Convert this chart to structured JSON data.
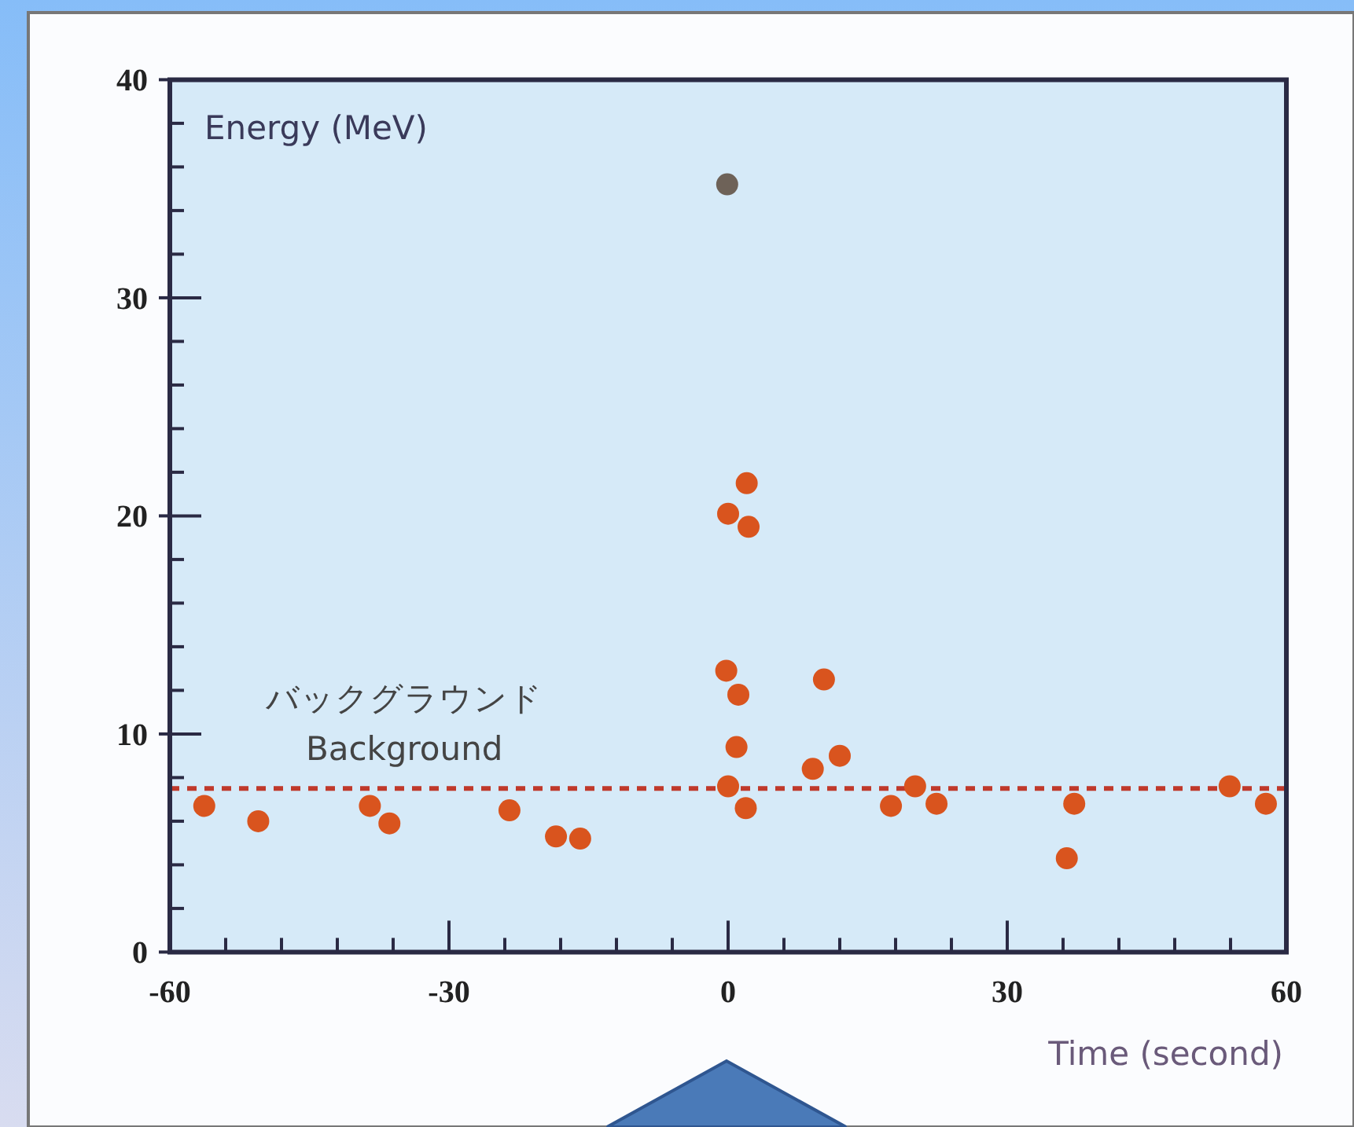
{
  "chart_data": {
    "type": "scatter",
    "xlabel": "Time (second)",
    "ylabel": "Energy (MeV)",
    "xlim": [
      -60,
      60
    ],
    "ylim": [
      0,
      40
    ],
    "xticks": [
      -60,
      {
        "value": -54,
        "label": null
      },
      {
        "value": -48,
        "label": null
      },
      {
        "value": -42,
        "label": null
      },
      {
        "value": -36,
        "label": null
      },
      -30,
      {
        "value": -24,
        "label": null
      },
      {
        "value": -18,
        "label": null
      },
      {
        "value": -12,
        "label": null
      },
      {
        "value": -6,
        "label": null
      },
      0,
      {
        "value": 6,
        "label": null
      },
      {
        "value": 12,
        "label": null
      },
      {
        "value": 18,
        "label": null
      },
      {
        "value": 24,
        "label": null
      },
      30,
      {
        "value": 36,
        "label": null
      },
      {
        "value": 42,
        "label": null
      },
      {
        "value": 48,
        "label": null
      },
      {
        "value": 54,
        "label": null
      },
      60
    ],
    "yticks": [
      0,
      {
        "value": 2,
        "label": null
      },
      {
        "value": 4,
        "label": null
      },
      {
        "value": 6,
        "label": null
      },
      {
        "value": 8,
        "label": null
      },
      10,
      {
        "value": 12,
        "label": null
      },
      {
        "value": 14,
        "label": null
      },
      {
        "value": 16,
        "label": null
      },
      {
        "value": 18,
        "label": null
      },
      20,
      {
        "value": 22,
        "label": null
      },
      {
        "value": 24,
        "label": null
      },
      {
        "value": 26,
        "label": null
      },
      {
        "value": 28,
        "label": null
      },
      30,
      {
        "value": 32,
        "label": null
      },
      {
        "value": 34,
        "label": null
      },
      {
        "value": 36,
        "label": null
      },
      {
        "value": 38,
        "label": null
      },
      40
    ],
    "marker": "circle",
    "x": [
      -56.3,
      -50.5,
      -38.5,
      -36.4,
      -23.5,
      -18.5,
      -15.9,
      -0.1,
      0,
      2.2,
      2.0,
      -0.2,
      1.1,
      0.9,
      0,
      1.9,
      10.3,
      9.1,
      12.0,
      17.5,
      20.1,
      22.4,
      36.4,
      37.2,
      53.9,
      57.8
    ],
    "values": [
      6.7,
      6.0,
      6.7,
      5.9,
      6.5,
      5.3,
      5.2,
      35.2,
      20.1,
      19.5,
      21.5,
      12.9,
      11.8,
      9.4,
      7.6,
      6.6,
      12.5,
      8.4,
      9.0,
      6.7,
      7.6,
      6.8,
      4.3,
      6.8,
      7.6,
      6.8
    ],
    "colors": [
      "#d9541e",
      "#d9541e",
      "#d9541e",
      "#d9541e",
      "#d9541e",
      "#d9541e",
      "#d9541e",
      "#6e6258",
      "#d9541e",
      "#d9541e",
      "#d9541e",
      "#d9541e",
      "#d9541e",
      "#d9541e",
      "#d9541e",
      "#d9541e",
      "#d9541e",
      "#d9541e",
      "#d9541e",
      "#d9541e",
      "#d9541e",
      "#d9541e",
      "#d9541e",
      "#d9541e",
      "#d9541e",
      "#d9541e"
    ],
    "ref_lines": [
      {
        "axis": "y",
        "value": 7.5,
        "label": "バックグラウンド\nBackground",
        "color": "#c0392b",
        "line_style": "dashed"
      }
    ]
  }
}
